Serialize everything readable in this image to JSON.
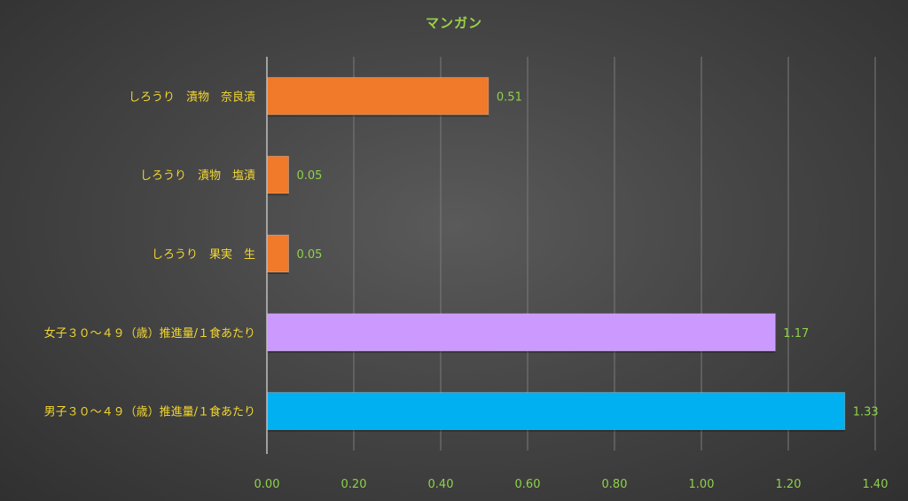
{
  "chart_data": {
    "type": "bar",
    "orientation": "horizontal",
    "title": "マンガン",
    "categories": [
      "しろうり　漬物　奈良漬",
      "しろうり　漬物　塩漬",
      "しろうり　果実　生",
      "女子３０～４９（歳）推進量/１食あたり",
      "男子３０～４９（歳）推進量/１食あたり"
    ],
    "values": [
      0.51,
      0.05,
      0.05,
      1.17,
      1.33
    ],
    "value_labels": [
      "0.51",
      "0.05",
      "0.05",
      "1.17",
      "1.33"
    ],
    "bar_colors": [
      "#f07a2a",
      "#f07a2a",
      "#f07a2a",
      "#cc99ff",
      "#00b0f0"
    ],
    "xlim": [
      0,
      1.4
    ],
    "x_ticks": [
      "0.00",
      "0.20",
      "0.40",
      "0.60",
      "0.80",
      "1.00",
      "1.20",
      "1.40"
    ],
    "grid": true,
    "legend": "none"
  },
  "colors": {
    "title": "#9bd24a",
    "category_text": "#f2d630",
    "tick_text": "#8ed14a",
    "gridline": "#7a7a7a",
    "axis": "#bfbfbf"
  }
}
